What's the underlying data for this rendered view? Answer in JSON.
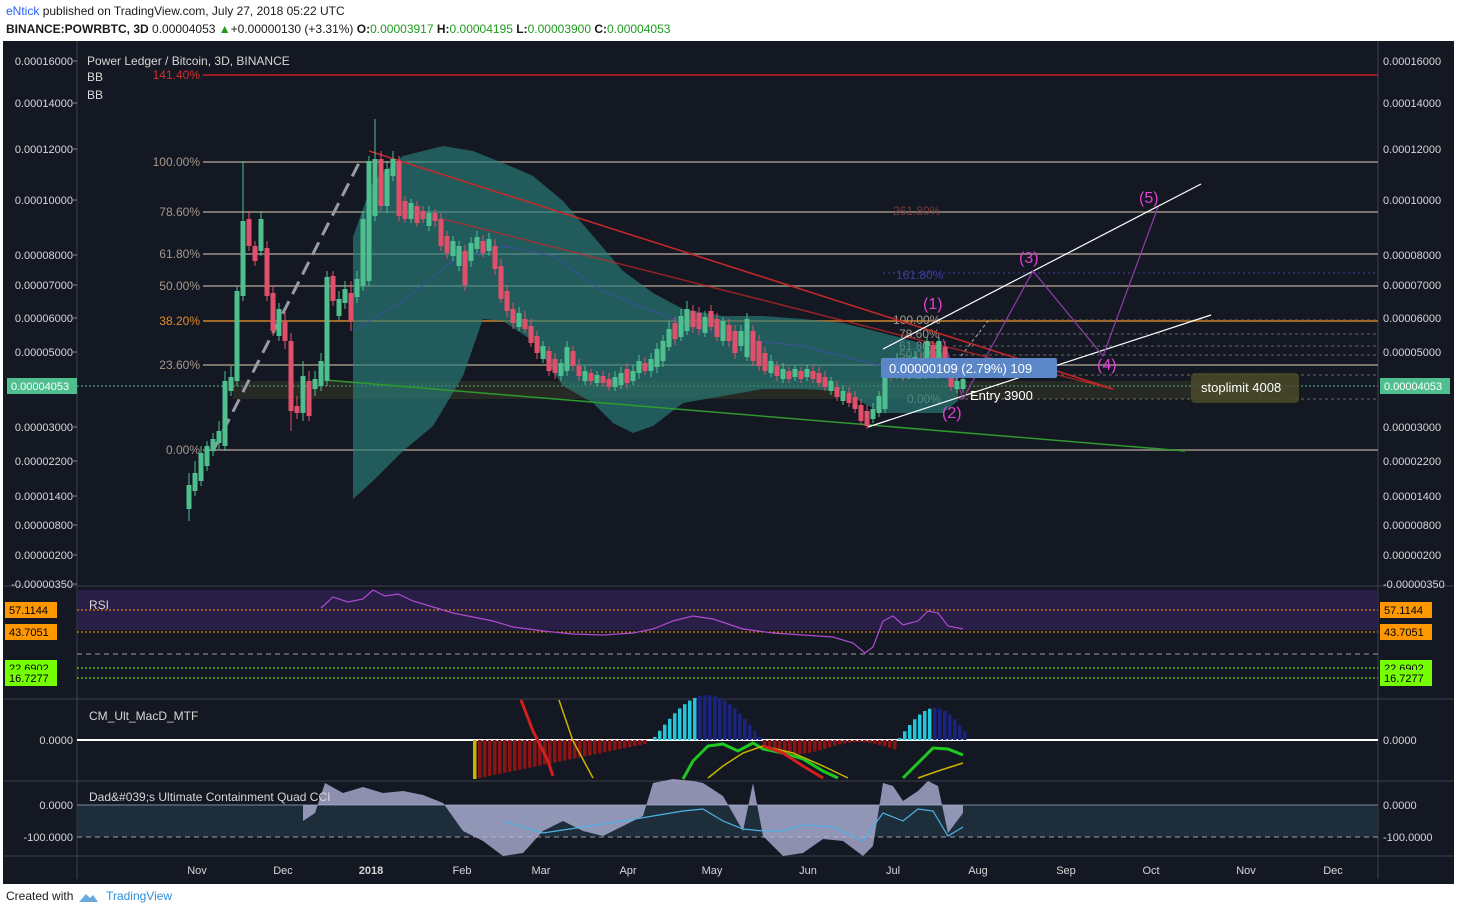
{
  "header": {
    "author": "eNtick",
    "published": "published on TradingView.com, July 27, 2018 05:22 UTC",
    "symbol": "BINANCE:POWRBTC, 3D",
    "last": "0.00004053",
    "change": "+0.00000130 (+3.31%)",
    "open_label": "O:",
    "open": "0.00003917",
    "high_label": "H:",
    "high": "0.00004195",
    "low_label": "L:",
    "low": "0.00003900",
    "close_label": "C:",
    "close": "0.00004053"
  },
  "legend": {
    "title": "Power Ledger / Bitcoin, 3D, BINANCE",
    "bb1": "BB",
    "bb2": "BB"
  },
  "price_axis": {
    "ticks": [
      "0.00016000",
      "0.00014000",
      "0.00012000",
      "0.00010000",
      "0.00008000",
      "0.00007000",
      "0.00006000",
      "0.00005000",
      "0.00003000",
      "0.00002200",
      "0.00001400",
      "0.00000800",
      "0.00000200",
      "-0.00000350"
    ],
    "current_label": "0.00004053"
  },
  "time_axis": [
    "Nov",
    "Dec",
    "2018",
    "Feb",
    "Mar",
    "Apr",
    "May",
    "Jun",
    "Jul",
    "Aug",
    "Sep",
    "Oct",
    "Nov",
    "Dec"
  ],
  "fib_left": [
    {
      "label": "141.40%",
      "color": "#d32f2f"
    },
    {
      "label": "100.00%",
      "color": "#a5998d"
    },
    {
      "label": "78.60%",
      "color": "#a5998d"
    },
    {
      "label": "61.80%",
      "color": "#a5998d"
    },
    {
      "label": "50.00%",
      "color": "#a5998d"
    },
    {
      "label": "38.20%",
      "color": "#e08a2c"
    },
    {
      "label": "23.60%",
      "color": "#a5998d"
    },
    {
      "label": "0.00%",
      "color": "#a5998d"
    }
  ],
  "fib_right": {
    "ext1": "261.80%",
    "ext2": "161.80%",
    "lvl100": "100.00%",
    "lvl786": "78.60%",
    "lvl618": "61.80%",
    "lvl50": "50.00%",
    "lvl382": "38.20%",
    "lvl0": "0.00%"
  },
  "annotations": {
    "measure": "0.00000109 (2.79%) 109",
    "entry": "Entry 3900",
    "stoplimit": "stoplimit 4008",
    "waves": [
      "(1)",
      "(2)",
      "(3)",
      "(4)",
      "(5)"
    ]
  },
  "rsi": {
    "name": "RSI",
    "levels": [
      "57.1144",
      "43.7051",
      "22.6902",
      "16.7277"
    ]
  },
  "macd": {
    "name": "CM_Ult_MacD_MTF",
    "zero": "0.0000"
  },
  "cci": {
    "name": "Dad&#039;s Ultimate Containment Quad CCI",
    "zero": "0.0000",
    "minus100": "-100.0000"
  },
  "footer": {
    "created": "Created with",
    "brand": "TradingView"
  },
  "colors": {
    "background": "#141823",
    "up": "#4fbf8f",
    "down": "#e0506b",
    "bb_fill": "#2a7f7a",
    "wave": "#e040d0"
  },
  "chart_data": {
    "type": "candlestick",
    "title": "Power Ledger / Bitcoin, 3D, BINANCE",
    "x": [
      "Nov",
      "Dec",
      "2018",
      "Feb",
      "Mar",
      "Apr",
      "May",
      "Jun",
      "Jul"
    ],
    "close_approx": [
      1.4e-05,
      7.5e-05,
      0.000115,
      7e-05,
      4.3e-05,
      4.2e-05,
      5.2e-05,
      3.9e-05,
      4.053e-05
    ],
    "ylim": [
      -3.5e-06,
      0.000165
    ],
    "last_close": 4.053e-05,
    "fib_levels": {
      "141.40%": 0.000152,
      "100.00%": 0.0001165,
      "78.60%": 9.75e-05,
      "61.80%": 8.05e-05,
      "50.00%": 7e-05,
      "38.20%": 6e-05,
      "23.60%": 4.75e-05,
      "0.00%": 2.4e-05
    }
  }
}
